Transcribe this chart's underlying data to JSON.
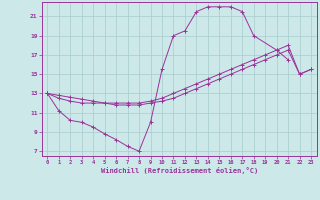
{
  "xlabel": "Windchill (Refroidissement éolien,°C)",
  "xlim": [
    -0.5,
    23.5
  ],
  "ylim": [
    6.5,
    22.5
  ],
  "xticks": [
    0,
    1,
    2,
    3,
    4,
    5,
    6,
    7,
    8,
    9,
    10,
    11,
    12,
    13,
    14,
    15,
    16,
    17,
    18,
    19,
    20,
    21,
    22,
    23
  ],
  "yticks": [
    7,
    9,
    11,
    13,
    15,
    17,
    19,
    21
  ],
  "bg_color": "#cce8e8",
  "grid_color": "#a8cccc",
  "line_color": "#993399",
  "curve1_x": [
    0,
    1,
    2,
    3,
    4,
    5,
    6,
    7,
    8,
    9,
    10,
    11,
    12,
    13,
    14,
    15,
    16,
    17,
    18,
    20,
    21
  ],
  "curve1_y": [
    13.0,
    11.2,
    10.2,
    10.0,
    9.5,
    8.8,
    8.2,
    7.5,
    7.0,
    10.0,
    15.5,
    19.0,
    19.5,
    21.5,
    22.0,
    22.0,
    22.0,
    21.5,
    19.0,
    17.5,
    16.5
  ],
  "curve2_x": [
    0,
    1,
    2,
    3,
    4,
    5,
    6,
    7,
    8,
    9,
    10,
    11,
    12,
    13,
    14,
    15,
    16,
    17,
    18,
    19,
    20,
    21,
    22,
    23
  ],
  "curve2_y": [
    13.0,
    12.8,
    12.6,
    12.4,
    12.2,
    12.0,
    12.0,
    12.0,
    12.0,
    12.2,
    12.5,
    13.0,
    13.5,
    14.0,
    14.5,
    15.0,
    15.5,
    16.0,
    16.5,
    17.0,
    17.5,
    18.0,
    15.0,
    15.5
  ],
  "curve3_x": [
    0,
    1,
    2,
    3,
    4,
    5,
    6,
    7,
    8,
    9,
    10,
    11,
    12,
    13,
    14,
    15,
    16,
    17,
    18,
    19,
    20,
    21,
    22,
    23
  ],
  "curve3_y": [
    13.0,
    12.5,
    12.2,
    12.0,
    12.0,
    12.0,
    11.8,
    11.8,
    11.8,
    12.0,
    12.2,
    12.5,
    13.0,
    13.5,
    14.0,
    14.5,
    15.0,
    15.5,
    16.0,
    16.5,
    17.0,
    17.5,
    15.0,
    15.5
  ]
}
